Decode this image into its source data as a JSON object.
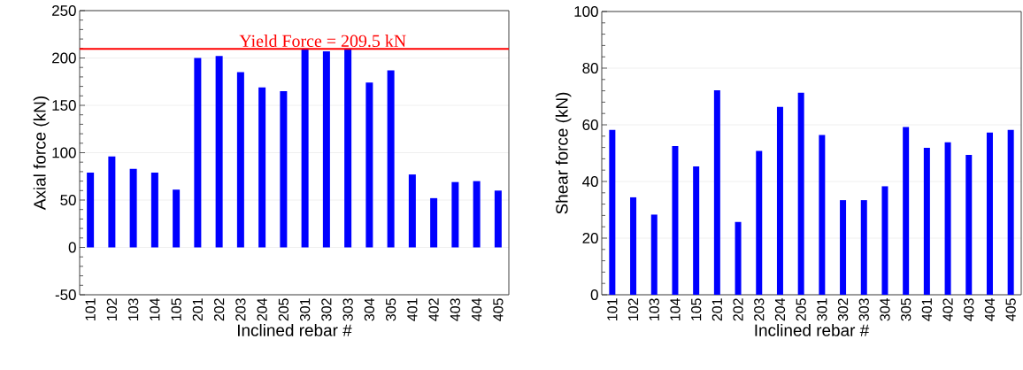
{
  "chart_data": [
    {
      "type": "bar",
      "xlabel": "Inclined rebar #",
      "ylabel": "Axial force (kN)",
      "categories": [
        "101",
        "102",
        "103",
        "104",
        "105",
        "201",
        "202",
        "203",
        "204",
        "205",
        "301",
        "302",
        "303",
        "304",
        "305",
        "401",
        "402",
        "403",
        "404",
        "405"
      ],
      "values": [
        79,
        96,
        83,
        79,
        61,
        200,
        202,
        185,
        169,
        165,
        210,
        207,
        210,
        174,
        187,
        77,
        52,
        69,
        70,
        60
      ],
      "color": "#0000ff",
      "ylim": [
        -50,
        250
      ],
      "yticks": [
        -50,
        0,
        50,
        100,
        150,
        200,
        250
      ],
      "grid": "y",
      "ref_lines": [
        {
          "axis": "y",
          "value": 209.5,
          "label": "Yield Force = 209.5 kN",
          "color": "#ff0000"
        }
      ]
    },
    {
      "type": "bar",
      "xlabel": "Inclined rebar #",
      "ylabel": "Shear force (kN)",
      "categories": [
        "101",
        "102",
        "103",
        "104",
        "105",
        "201",
        "202",
        "203",
        "204",
        "205",
        "301",
        "302",
        "303",
        "304",
        "305",
        "401",
        "402",
        "403",
        "404",
        "405"
      ],
      "values": [
        58.2,
        34.4,
        28.3,
        52.5,
        45.3,
        72.2,
        25.7,
        50.8,
        66.3,
        71.3,
        56.4,
        33.4,
        33.4,
        38.3,
        59.2,
        51.9,
        53.8,
        49.4,
        57.3,
        58.2
      ],
      "color": "#0000ff",
      "ylim": [
        0,
        100
      ],
      "yticks": [
        0,
        20,
        40,
        60,
        80,
        100
      ],
      "grid": "y"
    }
  ]
}
